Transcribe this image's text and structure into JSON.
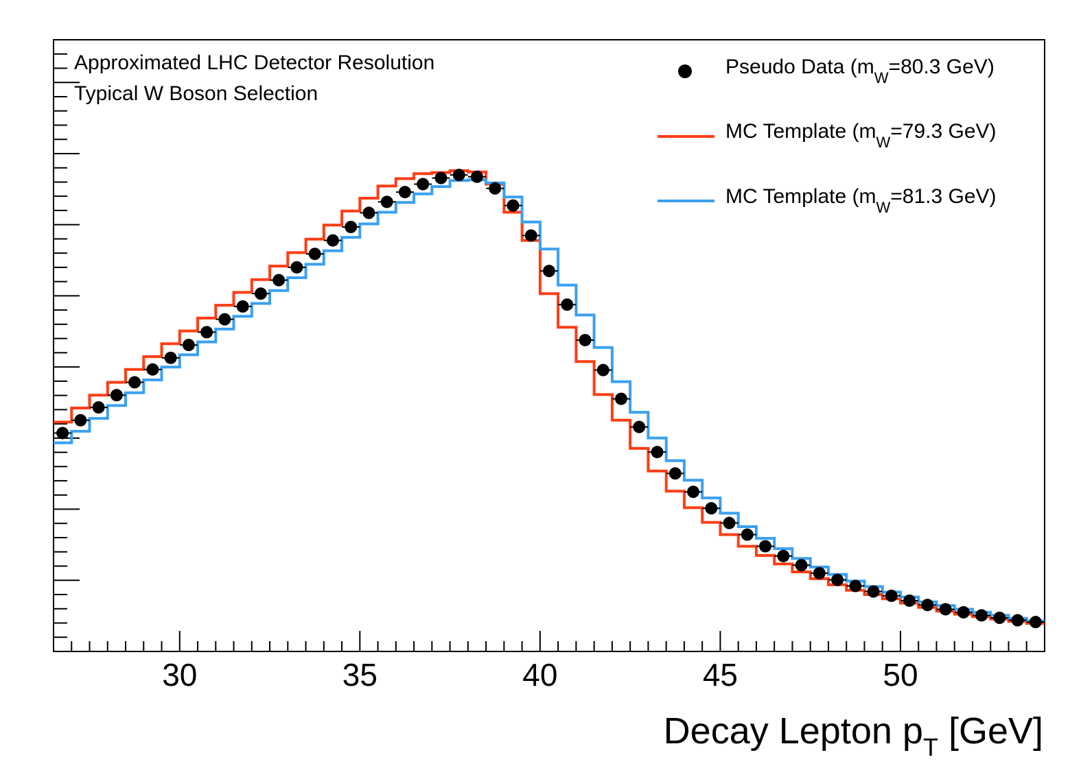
{
  "chart_data": {
    "type": "histogram",
    "title": "",
    "xlabel": "Decay Lepton p",
    "xlabel_subscript": "T",
    "xlabel_unit": " [GeV]",
    "ylabel": "",
    "xlim": [
      26.5,
      54.0
    ],
    "ylim": [
      0,
      1.0
    ],
    "x_ticks": [
      30,
      35,
      40,
      45,
      50
    ],
    "x_tick_labels": [
      "30",
      "35",
      "40",
      "45",
      "50"
    ],
    "y_tick_labels_shown": false,
    "annotations": [
      "Approximated LHC Detector Resolution",
      "Typical W Boson Selection"
    ],
    "bin_edges": [
      26.5,
      27.0,
      27.5,
      28.0,
      28.5,
      29.0,
      29.5,
      30.0,
      30.5,
      31.0,
      31.5,
      32.0,
      32.5,
      33.0,
      33.5,
      34.0,
      34.5,
      35.0,
      35.5,
      36.0,
      36.5,
      37.0,
      37.5,
      38.0,
      38.5,
      39.0,
      39.5,
      40.0,
      40.5,
      41.0,
      41.5,
      42.0,
      42.5,
      43.0,
      43.5,
      44.0,
      44.5,
      45.0,
      45.5,
      46.0,
      46.5,
      47.0,
      47.5,
      48.0,
      48.5,
      49.0,
      49.5,
      50.0,
      50.5,
      51.0,
      51.5,
      52.0,
      52.5,
      53.0,
      53.5,
      54.0
    ],
    "series": [
      {
        "name": "Pseudo Data",
        "legend_prefix": "Pseudo Data (m",
        "legend_sub": "W",
        "legend_suffix": "=80.3 GeV)",
        "style": "markers",
        "color": "#000000",
        "x": [
          26.75,
          27.25,
          27.75,
          28.25,
          28.75,
          29.25,
          29.75,
          30.25,
          30.75,
          31.25,
          31.75,
          32.25,
          32.75,
          33.25,
          33.75,
          34.25,
          34.75,
          35.25,
          35.75,
          36.25,
          36.75,
          37.25,
          37.75,
          38.25,
          38.75,
          39.25,
          39.75,
          40.25,
          40.75,
          41.25,
          41.75,
          42.25,
          42.75,
          43.25,
          43.75,
          44.25,
          44.75,
          45.25,
          45.75,
          46.25,
          46.75,
          47.25,
          47.75,
          48.25,
          48.75,
          49.25,
          49.75,
          50.25,
          50.75,
          51.25,
          51.75,
          52.25,
          52.75,
          53.25,
          53.75
        ],
        "values": [
          0.357,
          0.378,
          0.399,
          0.419,
          0.44,
          0.461,
          0.48,
          0.501,
          0.522,
          0.543,
          0.564,
          0.585,
          0.607,
          0.628,
          0.65,
          0.672,
          0.694,
          0.717,
          0.735,
          0.751,
          0.764,
          0.774,
          0.779,
          0.776,
          0.757,
          0.729,
          0.68,
          0.622,
          0.567,
          0.509,
          0.46,
          0.413,
          0.367,
          0.326,
          0.291,
          0.261,
          0.234,
          0.21,
          0.191,
          0.172,
          0.156,
          0.141,
          0.128,
          0.117,
          0.107,
          0.098,
          0.091,
          0.083,
          0.076,
          0.069,
          0.064,
          0.059,
          0.055,
          0.051,
          0.048
        ]
      },
      {
        "name": "MC Template 79.3",
        "legend_prefix": "MC Template (m",
        "legend_sub": "W",
        "legend_suffix": "=79.3 GeV)",
        "style": "step",
        "color": "#ff3d14",
        "values": [
          0.375,
          0.398,
          0.419,
          0.44,
          0.461,
          0.482,
          0.503,
          0.524,
          0.545,
          0.566,
          0.587,
          0.608,
          0.63,
          0.652,
          0.674,
          0.697,
          0.72,
          0.741,
          0.761,
          0.773,
          0.781,
          0.783,
          0.786,
          0.784,
          0.764,
          0.718,
          0.672,
          0.585,
          0.53,
          0.474,
          0.42,
          0.378,
          0.332,
          0.295,
          0.262,
          0.235,
          0.211,
          0.191,
          0.172,
          0.157,
          0.143,
          0.13,
          0.119,
          0.109,
          0.1,
          0.093,
          0.086,
          0.079,
          0.072,
          0.066,
          0.061,
          0.057,
          0.053,
          0.049,
          0.046
        ]
      },
      {
        "name": "MC Template 81.3",
        "legend_prefix": "MC Template (m",
        "legend_sub": "W",
        "legend_suffix": "=81.3 GeV)",
        "style": "step",
        "color": "#3ba0f0",
        "values": [
          0.341,
          0.36,
          0.381,
          0.402,
          0.423,
          0.444,
          0.465,
          0.485,
          0.506,
          0.527,
          0.548,
          0.569,
          0.59,
          0.611,
          0.633,
          0.655,
          0.677,
          0.699,
          0.718,
          0.734,
          0.748,
          0.76,
          0.77,
          0.771,
          0.766,
          0.743,
          0.702,
          0.658,
          0.599,
          0.55,
          0.497,
          0.441,
          0.391,
          0.349,
          0.312,
          0.28,
          0.251,
          0.226,
          0.204,
          0.185,
          0.168,
          0.152,
          0.138,
          0.126,
          0.115,
          0.106,
          0.097,
          0.089,
          0.081,
          0.075,
          0.069,
          0.064,
          0.059,
          0.054,
          0.05
        ]
      }
    ],
    "legend_position": "top-right"
  }
}
